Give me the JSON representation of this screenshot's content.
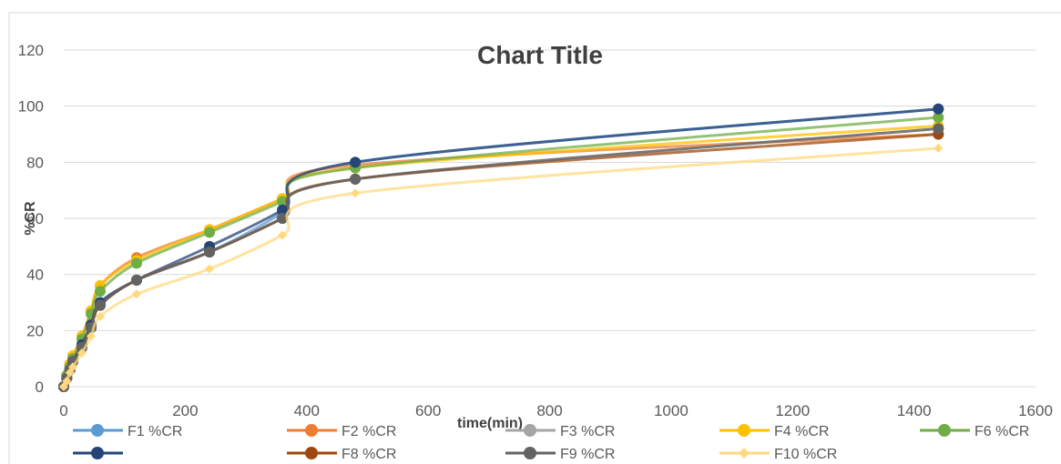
{
  "chart_data": {
    "type": "line",
    "title": "Chart Title",
    "xlabel": "time(min)",
    "ylabel": "%CR",
    "xlim": [
      0,
      1600
    ],
    "ylim": [
      0,
      120
    ],
    "xticks": [
      0,
      200,
      400,
      600,
      800,
      1000,
      1200,
      1400,
      1600
    ],
    "yticks": [
      0,
      20,
      40,
      60,
      80,
      100,
      120
    ],
    "grid": "horizontal",
    "legend_position": "bottom",
    "x": [
      0,
      5,
      10,
      15,
      30,
      45,
      60,
      120,
      240,
      360,
      480,
      1440
    ],
    "series": [
      {
        "name": "F1 %CR",
        "color": "#5B9BD5",
        "marker": "circle",
        "values": [
          0,
          3,
          6,
          9,
          15,
          22,
          30,
          38,
          48,
          62,
          80,
          99
        ]
      },
      {
        "name": "F2 %CR",
        "color": "#ED7D31",
        "marker": "circle",
        "values": [
          0,
          4,
          8,
          11,
          18,
          27,
          36,
          46,
          56,
          67,
          79,
          90
        ]
      },
      {
        "name": "F3 %CR",
        "color": "#A5A5A5",
        "marker": "circle",
        "values": [
          0,
          3,
          6,
          9,
          14,
          21,
          29,
          38,
          48,
          60,
          74,
          92
        ]
      },
      {
        "name": "F4 %CR",
        "color": "#FFC000",
        "marker": "circle",
        "values": [
          0,
          4,
          8,
          11,
          18,
          27,
          36,
          45,
          56,
          67,
          78,
          93
        ]
      },
      {
        "name": "F6 %CR",
        "color": "#70AD47",
        "marker": "circle",
        "values": [
          0,
          4,
          7,
          10,
          17,
          26,
          34,
          44,
          55,
          66,
          78,
          96
        ]
      },
      {
        "name": "",
        "color": "#264478",
        "marker": "circle",
        "values": [
          0,
          3,
          6,
          9,
          15,
          22,
          30,
          38,
          50,
          63,
          80,
          99
        ]
      },
      {
        "name": "F8 %CR",
        "color": "#9E480E",
        "marker": "circle",
        "values": [
          0,
          3,
          6,
          9,
          14,
          21,
          29,
          38,
          48,
          60,
          74,
          90
        ]
      },
      {
        "name": "F9 %CR",
        "color": "#636363",
        "marker": "circle",
        "values": [
          0,
          3,
          6,
          9,
          14,
          21,
          29,
          38,
          48,
          60,
          74,
          92
        ]
      },
      {
        "name": "F10 %CR",
        "color": "#FFD97F",
        "marker": "diamond",
        "values": [
          0,
          2,
          5,
          7,
          12,
          18,
          25,
          33,
          42,
          54,
          69,
          85
        ]
      }
    ]
  }
}
